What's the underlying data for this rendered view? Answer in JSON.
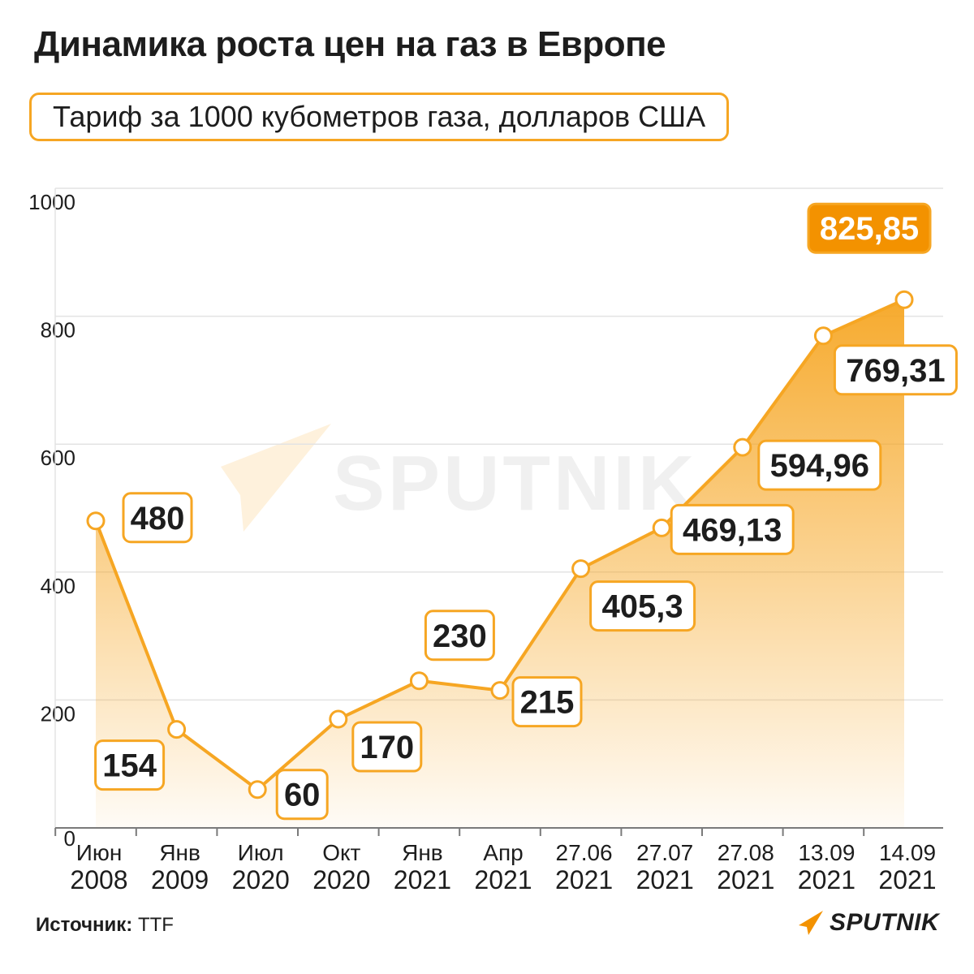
{
  "header": {
    "title": "Динамика роста цен на газ в Европе",
    "subtitle": "Тариф за 1000 кубометров газа, долларов США"
  },
  "footer": {
    "source_label": "Источник:",
    "source_value": "TTF",
    "logo_text": "SPUTNIK",
    "logo_icon": "sputnik-arrow-icon"
  },
  "watermark": {
    "text": "SPUTNIK"
  },
  "colors": {
    "accent": "#f6a623",
    "highlight_fill": "#f39200",
    "text": "#1d1d1d",
    "grid": "#e3e3e3"
  },
  "chart_data": {
    "type": "area",
    "title": "Динамика роста цен на газ в Европе",
    "subtitle": "Тариф за 1000 кубометров газа, долларов США",
    "categories": [
      [
        "Июн",
        "2008"
      ],
      [
        "Янв",
        "2009"
      ],
      [
        "Июл",
        "2020"
      ],
      [
        "Окт",
        "2020"
      ],
      [
        "Янв",
        "2021"
      ],
      [
        "Апр",
        "2021"
      ],
      [
        "27.06",
        "2021"
      ],
      [
        "27.07",
        "2021"
      ],
      [
        "27.08",
        "2021"
      ],
      [
        "13.09",
        "2021"
      ],
      [
        "14.09",
        "2021"
      ]
    ],
    "values": [
      480,
      154,
      60,
      170,
      230,
      215,
      405.3,
      469.13,
      594.96,
      769.31,
      825.85
    ],
    "value_labels": [
      "480",
      "154",
      "60",
      "170",
      "230",
      "215",
      "405,3",
      "469,13",
      "594,96",
      "769,31",
      "825,85"
    ],
    "ylim": [
      0,
      1000
    ],
    "yticks": [
      "0",
      "200",
      "400",
      "600",
      "800",
      "1000"
    ],
    "ytick_values": [
      0,
      200,
      400,
      600,
      800,
      1000
    ],
    "grid": true,
    "highlight_last": true
  }
}
